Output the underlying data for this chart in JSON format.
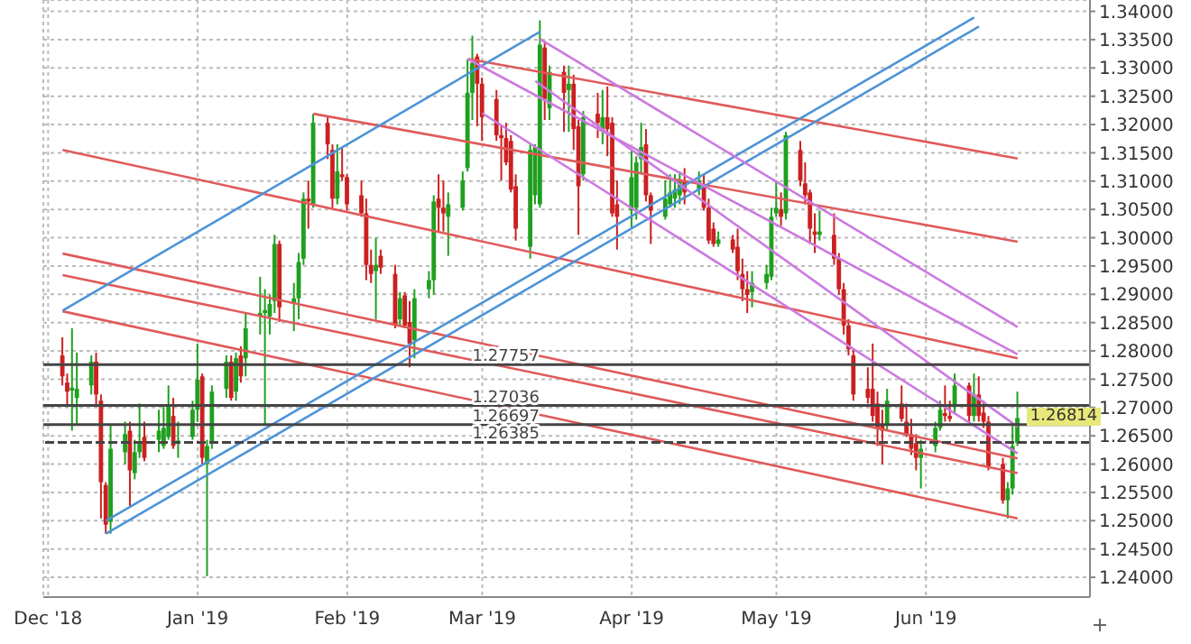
{
  "chart_data": {
    "type": "candlestick",
    "x": [
      "2018-12-04",
      "2018-12-05",
      "2018-12-06",
      "2018-12-07",
      "2018-12-10",
      "2018-12-11",
      "2018-12-12",
      "2018-12-13",
      "2018-12-14",
      "2018-12-17",
      "2018-12-18",
      "2018-12-19",
      "2018-12-20",
      "2018-12-21",
      "2018-12-24",
      "2018-12-25",
      "2018-12-26",
      "2018-12-27",
      "2018-12-28",
      "2018-12-31",
      "2019-01-01",
      "2019-01-02",
      "2019-01-03",
      "2019-01-04",
      "2019-01-07",
      "2019-01-08",
      "2019-01-09",
      "2019-01-10",
      "2019-01-11",
      "2019-01-14",
      "2019-01-15",
      "2019-01-16",
      "2019-01-17",
      "2019-01-18",
      "2019-01-21",
      "2019-01-22",
      "2019-01-23",
      "2019-01-24",
      "2019-01-25",
      "2019-01-28",
      "2019-01-29",
      "2019-01-30",
      "2019-01-31",
      "2019-02-01",
      "2019-02-04",
      "2019-02-05",
      "2019-02-06",
      "2019-02-07",
      "2019-02-08",
      "2019-02-11",
      "2019-02-12",
      "2019-02-13",
      "2019-02-14",
      "2019-02-15",
      "2019-02-18",
      "2019-02-19",
      "2019-02-20",
      "2019-02-21",
      "2019-02-22",
      "2019-02-25",
      "2019-02-26",
      "2019-02-27",
      "2019-02-28",
      "2019-03-01",
      "2019-03-04",
      "2019-03-05",
      "2019-03-06",
      "2019-03-07",
      "2019-03-08",
      "2019-03-11",
      "2019-03-12",
      "2019-03-13",
      "2019-03-14",
      "2019-03-15",
      "2019-03-18",
      "2019-03-19",
      "2019-03-20",
      "2019-03-21",
      "2019-03-22",
      "2019-03-25",
      "2019-03-26",
      "2019-03-27",
      "2019-03-28",
      "2019-03-29",
      "2019-04-01",
      "2019-04-02",
      "2019-04-03",
      "2019-04-04",
      "2019-04-05",
      "2019-04-08",
      "2019-04-09",
      "2019-04-10",
      "2019-04-11",
      "2019-04-12",
      "2019-04-15",
      "2019-04-16",
      "2019-04-17",
      "2019-04-18",
      "2019-04-19",
      "2019-04-22",
      "2019-04-23",
      "2019-04-24",
      "2019-04-25",
      "2019-04-26",
      "2019-04-29",
      "2019-04-30",
      "2019-05-01",
      "2019-05-02",
      "2019-05-03",
      "2019-05-06",
      "2019-05-07",
      "2019-05-08",
      "2019-05-09",
      "2019-05-10",
      "2019-05-13",
      "2019-05-14",
      "2019-05-15",
      "2019-05-16",
      "2019-05-17",
      "2019-05-20",
      "2019-05-21",
      "2019-05-22",
      "2019-05-23",
      "2019-05-24",
      "2019-05-27",
      "2019-05-28",
      "2019-05-29",
      "2019-05-30",
      "2019-05-31",
      "2019-06-03",
      "2019-06-04",
      "2019-06-05",
      "2019-06-06",
      "2019-06-07",
      "2019-06-10",
      "2019-06-11",
      "2019-06-12",
      "2019-06-13",
      "2019-06-14",
      "2019-06-17",
      "2019-06-18",
      "2019-06-19",
      "2019-06-20"
    ],
    "ohlc": [
      [
        1.2792,
        1.2824,
        1.2739,
        1.2755
      ],
      [
        1.2744,
        1.276,
        1.2701,
        1.2728
      ],
      [
        1.273,
        1.284,
        1.2659,
        1.2735
      ],
      [
        1.2717,
        1.2797,
        1.2669,
        1.2733
      ],
      [
        1.2739,
        1.2792,
        1.2723,
        1.2781
      ],
      [
        1.2781,
        1.2797,
        1.2701,
        1.2723
      ],
      [
        1.2712,
        1.2723,
        1.2504,
        1.2568
      ],
      [
        1.2563,
        1.2568,
        1.2477,
        1.2493
      ],
      [
        1.2498,
        1.2669,
        1.2477,
        1.2627
      ],
      [
        1.2621,
        1.2675,
        1.26,
        1.2653
      ],
      [
        1.2659,
        1.2675,
        1.2525,
        1.2589
      ],
      [
        1.2584,
        1.2643,
        1.2573,
        1.2621
      ],
      [
        1.2621,
        1.2707,
        1.2611,
        1.2637
      ],
      [
        1.2648,
        1.2675,
        1.2605,
        1.2611
      ],
      [
        1.2643,
        1.2696,
        1.2621,
        1.2659
      ],
      [
        1.2632,
        1.2701,
        1.2627,
        1.2664
      ],
      [
        1.2648,
        1.2739,
        1.2643,
        1.2701
      ],
      [
        1.2685,
        1.2717,
        1.2627,
        1.2632
      ],
      [
        1.2637,
        1.2675,
        1.2611,
        1.264
      ],
      [
        1.2648,
        1.2712,
        1.2643,
        1.2696
      ],
      [
        1.2696,
        1.2813,
        1.2675,
        1.2749
      ],
      [
        1.2755,
        1.276,
        1.26,
        1.2611
      ],
      [
        1.26,
        1.2643,
        1.2402,
        1.2632
      ],
      [
        1.2637,
        1.2739,
        1.2627,
        1.2728
      ],
      [
        1.2733,
        1.2792,
        1.2717,
        1.2781
      ],
      [
        1.2781,
        1.2792,
        1.2712,
        1.2717
      ],
      [
        1.2728,
        1.2797,
        1.2712,
        1.2787
      ],
      [
        1.2792,
        1.2808,
        1.2744,
        1.2755
      ],
      [
        1.2787,
        1.2867,
        1.2755,
        1.284
      ],
      [
        1.2861,
        1.2931,
        1.2829,
        1.2867
      ],
      [
        1.2867,
        1.2909,
        1.2669,
        1.2872
      ],
      [
        1.2861,
        1.2899,
        1.2829,
        1.2883
      ],
      [
        1.2888,
        1.3005,
        1.2867,
        1.2989
      ],
      [
        1.2989,
        1.2995,
        1.2851,
        1.2877
      ],
      [
        1.2883,
        1.292,
        1.2835,
        1.2893
      ],
      [
        1.2893,
        1.2973,
        1.2856,
        1.2957
      ],
      [
        1.2963,
        1.308,
        1.2952,
        1.3069
      ],
      [
        1.3069,
        1.3101,
        1.3016,
        1.3064
      ],
      [
        1.3059,
        1.3219,
        1.3053,
        1.3203
      ],
      [
        1.3203,
        1.3213,
        1.3139,
        1.3165
      ],
      [
        1.3155,
        1.3165,
        1.3053,
        1.3069
      ],
      [
        1.3069,
        1.3165,
        1.3059,
        1.3117
      ],
      [
        1.3112,
        1.316,
        1.3101,
        1.3107
      ],
      [
        1.3107,
        1.3112,
        1.3048,
        1.3059
      ],
      [
        1.3075,
        1.3101,
        1.3037,
        1.3043
      ],
      [
        1.3043,
        1.3069,
        1.2925,
        1.2952
      ],
      [
        1.2952,
        1.2979,
        1.292,
        1.2936
      ],
      [
        1.2941,
        1.3,
        1.2856,
        1.2952
      ],
      [
        1.2968,
        1.2979,
        1.2936,
        1.2947
      ],
      [
        1.2936,
        1.2952,
        1.284,
        1.2845
      ],
      [
        1.2856,
        1.2904,
        1.2845,
        1.2893
      ],
      [
        1.2898,
        1.2904,
        1.284,
        1.2845
      ],
      [
        1.2851,
        1.2888,
        1.2771,
        1.2813
      ],
      [
        1.2819,
        1.2909,
        1.2787,
        1.2893
      ],
      [
        1.2909,
        1.2941,
        1.2893,
        1.2925
      ],
      [
        1.2925,
        1.3075,
        1.2899,
        1.3064
      ],
      [
        1.3069,
        1.3112,
        1.3011,
        1.3053
      ],
      [
        1.3053,
        1.3101,
        1.3011,
        1.3043
      ],
      [
        1.3037,
        1.308,
        1.2968,
        1.3059
      ],
      [
        1.3053,
        1.3117,
        1.3048,
        1.3101
      ],
      [
        1.3123,
        1.3315,
        1.3117,
        1.3256
      ],
      [
        1.3256,
        1.3357,
        1.3208,
        1.3309
      ],
      [
        1.332,
        1.3325,
        1.3197,
        1.3272
      ],
      [
        1.3272,
        1.3283,
        1.3171,
        1.3213
      ],
      [
        1.3245,
        1.3261,
        1.3171,
        1.3181
      ],
      [
        1.3181,
        1.3197,
        1.3101,
        1.3176
      ],
      [
        1.3176,
        1.3203,
        1.3128,
        1.3133
      ],
      [
        1.3171,
        1.3181,
        1.308,
        1.3085
      ],
      [
        1.3091,
        1.3112,
        1.2995,
        1.3016
      ],
      [
        1.2984,
        1.3165,
        1.2963,
        1.3155
      ],
      [
        1.3075,
        1.3165,
        1.3059,
        1.316
      ],
      [
        1.3059,
        1.3384,
        1.3053,
        1.3341
      ],
      [
        1.3336,
        1.3347,
        1.3208,
        1.3245
      ],
      [
        1.3229,
        1.3304,
        1.3208,
        1.3293
      ],
      [
        1.3293,
        1.3304,
        1.3187,
        1.3256
      ],
      [
        1.3261,
        1.3304,
        1.3187,
        1.3272
      ],
      [
        1.3272,
        1.3288,
        1.3155,
        1.3192
      ],
      [
        1.3197,
        1.3208,
        1.3005,
        1.3091
      ],
      [
        1.3112,
        1.3224,
        1.3101,
        1.3213
      ],
      [
        1.3219,
        1.3256,
        1.3176,
        1.3203
      ],
      [
        1.3192,
        1.3261,
        1.3165,
        1.3213
      ],
      [
        1.3213,
        1.3267,
        1.3144,
        1.3192
      ],
      [
        1.3203,
        1.3213,
        1.3037,
        1.3043
      ],
      [
        1.3059,
        1.3101,
        1.2979,
        1.3037
      ],
      [
        1.3048,
        1.3155,
        1.3016,
        1.3107
      ],
      [
        1.3053,
        1.3144,
        1.3032,
        1.3133
      ],
      [
        1.3139,
        1.3203,
        1.3112,
        1.316
      ],
      [
        1.3165,
        1.3192,
        1.3064,
        1.3075
      ],
      [
        1.3075,
        1.308,
        1.2989,
        1.3048
      ],
      [
        1.3037,
        1.3101,
        1.3032,
        1.3069
      ],
      [
        1.3059,
        1.3112,
        1.3053,
        1.308
      ],
      [
        1.3069,
        1.3112,
        1.3053,
        1.3085
      ],
      [
        1.3075,
        1.3117,
        1.3059,
        1.3101
      ],
      [
        1.3101,
        1.3123,
        1.3059,
        1.308
      ],
      [
        1.3085,
        1.3117,
        1.3075,
        1.3101
      ],
      [
        1.3091,
        1.3112,
        1.3048,
        1.3053
      ],
      [
        1.3053,
        1.3069,
        1.2989,
        1.2995
      ],
      [
        1.3016,
        1.3027,
        1.2984,
        1.2989
      ],
      [
        1.2989,
        1.3011,
        1.2984,
        1.2997
      ],
      [
        1.2997,
        1.3005,
        1.2973,
        1.2979
      ],
      [
        1.2984,
        1.3016,
        1.2925,
        1.2941
      ],
      [
        1.2936,
        1.2963,
        1.2888,
        1.2909
      ],
      [
        1.2909,
        1.2941,
        1.2867,
        1.2899
      ],
      [
        1.2904,
        1.2941,
        1.2877,
        1.292
      ],
      [
        1.292,
        1.2952,
        1.2909,
        1.2936
      ],
      [
        1.2931,
        1.3053,
        1.2925,
        1.3037
      ],
      [
        1.3043,
        1.3101,
        1.3037,
        1.3053
      ],
      [
        1.305,
        1.308,
        1.3021,
        1.3037
      ],
      [
        1.3043,
        1.3187,
        1.3032,
        1.3181
      ],
      [
        1.3155,
        1.3171,
        1.3091,
        1.3101
      ],
      [
        1.3096,
        1.3133,
        1.3059,
        1.3075
      ],
      [
        1.308,
        1.3085,
        1.2989,
        1.3016
      ],
      [
        1.3011,
        1.3043,
        1.2973,
        1.3005
      ],
      [
        1.3005,
        1.3048,
        1.2995,
        1.3011
      ],
      [
        1.3005,
        1.3043,
        1.2952,
        1.2963
      ],
      [
        1.2963,
        1.2973,
        1.2899,
        1.2909
      ],
      [
        1.2909,
        1.292,
        1.2829,
        1.2845
      ],
      [
        1.2845,
        1.2856,
        1.2792,
        1.2803
      ],
      [
        1.2792,
        1.2803,
        1.2712,
        1.2723
      ],
      [
        1.2733,
        1.2771,
        1.2707,
        1.2717
      ],
      [
        1.2733,
        1.2813,
        1.2675,
        1.2685
      ],
      [
        1.2707,
        1.2728,
        1.2632,
        1.2664
      ],
      [
        1.2669,
        1.2696,
        1.26,
        1.2659
      ],
      [
        1.2669,
        1.2733,
        1.2659,
        1.2712
      ],
      [
        1.2707,
        1.2739,
        1.2675,
        1.268
      ],
      [
        1.2675,
        1.2707,
        1.2648,
        1.2653
      ],
      [
        1.2653,
        1.268,
        1.2616,
        1.2627
      ],
      [
        1.2637,
        1.2653,
        1.2589,
        1.2611
      ],
      [
        1.2611,
        1.2643,
        1.2557,
        1.2627
      ],
      [
        1.2632,
        1.2675,
        1.2621,
        1.2664
      ],
      [
        1.2664,
        1.2712,
        1.2659,
        1.2696
      ],
      [
        1.269,
        1.2739,
        1.2675,
        1.2685
      ],
      [
        1.2685,
        1.2712,
        1.2675,
        1.268
      ],
      [
        1.2701,
        1.276,
        1.2691,
        1.2739
      ],
      [
        1.2739,
        1.2744,
        1.2675,
        1.2685
      ],
      [
        1.2685,
        1.276,
        1.2675,
        1.2723
      ],
      [
        1.2723,
        1.2755,
        1.2675,
        1.2685
      ],
      [
        1.2691,
        1.2712,
        1.2664,
        1.2675
      ],
      [
        1.2675,
        1.2685,
        1.2589,
        1.2595
      ],
      [
        1.26,
        1.2611,
        1.253,
        1.2536
      ],
      [
        1.2536,
        1.2568,
        1.2504,
        1.2557
      ],
      [
        1.2557,
        1.2669,
        1.2546,
        1.2632
      ],
      [
        1.2637,
        1.2728,
        1.2632,
        1.26814
      ]
    ],
    "colors": [
      "#cc2020",
      "#cc2020",
      "#1fa01f",
      "#1fa01f",
      "#1fa01f",
      "#cc2020",
      "#cc2020",
      "#cc2020",
      "#1fa01f",
      "#1fa01f",
      "#cc2020",
      "#1fa01f",
      "#1fa01f",
      "#cc2020",
      "#1fa01f",
      "#1fa01f",
      "#1fa01f",
      "#cc2020",
      "#1fa01f",
      "#1fa01f",
      "#1fa01f",
      "#cc2020",
      "#1fa01f",
      "#1fa01f",
      "#1fa01f",
      "#cc2020",
      "#1fa01f",
      "#cc2020",
      "#1fa01f",
      "#1fa01f",
      "#1fa01f",
      "#1fa01f",
      "#1fa01f",
      "#cc2020",
      "#1fa01f",
      "#1fa01f",
      "#1fa01f",
      "#cc2020",
      "#1fa01f",
      "#cc2020",
      "#cc2020",
      "#1fa01f",
      "#cc2020",
      "#cc2020",
      "#cc2020",
      "#cc2020",
      "#cc2020",
      "#1fa01f",
      "#cc2020",
      "#cc2020",
      "#1fa01f",
      "#cc2020",
      "#cc2020",
      "#1fa01f",
      "#1fa01f",
      "#1fa01f",
      "#cc2020",
      "#cc2020",
      "#1fa01f",
      "#1fa01f",
      "#1fa01f",
      "#1fa01f",
      "#cc2020",
      "#cc2020",
      "#cc2020",
      "#cc2020",
      "#cc2020",
      "#cc2020",
      "#cc2020",
      "#1fa01f",
      "#1fa01f",
      "#1fa01f",
      "#cc2020",
      "#1fa01f",
      "#cc2020",
      "#1fa01f",
      "#cc2020",
      "#cc2020",
      "#1fa01f",
      "#cc2020",
      "#1fa01f",
      "#cc2020",
      "#cc2020",
      "#cc2020",
      "#1fa01f",
      "#1fa01f",
      "#1fa01f",
      "#cc2020",
      "#cc2020",
      "#1fa01f",
      "#1fa01f",
      "#1fa01f",
      "#1fa01f",
      "#cc2020",
      "#1fa01f",
      "#cc2020",
      "#cc2020",
      "#cc2020",
      "#1fa01f",
      "#cc2020",
      "#cc2020",
      "#cc2020",
      "#cc2020",
      "#1fa01f",
      "#1fa01f",
      "#1fa01f",
      "#1fa01f",
      "#cc2020",
      "#1fa01f",
      "#cc2020",
      "#cc2020",
      "#cc2020",
      "#cc2020",
      "#1fa01f",
      "#cc2020",
      "#cc2020",
      "#cc2020",
      "#cc2020",
      "#cc2020",
      "#cc2020",
      "#cc2020",
      "#cc2020",
      "#cc2020",
      "#1fa01f",
      "#cc2020",
      "#cc2020",
      "#cc2020",
      "#cc2020",
      "#1fa01f",
      "#1fa01f",
      "#1fa01f",
      "#cc2020",
      "#cc2020",
      "#1fa01f",
      "#cc2020",
      "#1fa01f",
      "#cc2020",
      "#cc2020",
      "#cc2020",
      "#cc2020",
      "#1fa01f",
      "#1fa01f",
      "#1fa01f"
    ],
    "series": [
      {
        "type": "line",
        "color": "#e05a5a",
        "x": [
          "2019-01-25",
          "2019-06-20"
        ],
        "values": [
          1.3219,
          1.2993
        ]
      },
      {
        "type": "line",
        "color": "#e05a5a",
        "x": [
          "2019-02-26",
          "2019-06-20"
        ],
        "values": [
          1.3316,
          1.314
        ]
      },
      {
        "type": "line",
        "color": "#e05a5a",
        "x": [
          "2018-12-04",
          "2019-06-20"
        ],
        "values": [
          1.3155,
          1.2787
        ]
      },
      {
        "type": "line",
        "color": "#e05a5a",
        "x": [
          "2018-12-04",
          "2019-06-20"
        ],
        "values": [
          1.2972,
          1.261
        ]
      },
      {
        "type": "line",
        "color": "#e05a5a",
        "x": [
          "2018-12-04",
          "2019-06-20"
        ],
        "values": [
          1.2934,
          1.2584
        ]
      },
      {
        "type": "line",
        "color": "#e05a5a",
        "x": [
          "2018-12-04",
          "2019-06-20"
        ],
        "values": [
          1.287,
          1.2504
        ]
      },
      {
        "type": "line",
        "color": "#4d94d8",
        "x": [
          "2018-12-04",
          "2019-03-13"
        ],
        "values": [
          1.2871,
          1.3364
        ]
      },
      {
        "type": "line",
        "color": "#4d94d8",
        "x": [
          "2018-12-13",
          "2019-06-11"
        ],
        "values": [
          1.25,
          1.3389
        ]
      },
      {
        "type": "line",
        "color": "#4d94d8",
        "x": [
          "2018-12-13",
          "2019-06-12"
        ],
        "values": [
          1.2477,
          1.3373
        ]
      },
      {
        "type": "line",
        "color": "#cc7ae0",
        "x": [
          "2019-03-13",
          "2019-06-20"
        ],
        "values": [
          1.3351,
          1.2842
        ]
      },
      {
        "type": "line",
        "color": "#cc7ae0",
        "x": [
          "2019-02-26",
          "2019-06-20"
        ],
        "values": [
          1.3316,
          1.2794
        ]
      },
      {
        "type": "line",
        "color": "#cc7ae0",
        "x": [
          "2019-03-12",
          "2019-06-20"
        ],
        "values": [
          1.3277,
          1.2666
        ]
      },
      {
        "type": "line",
        "color": "#cc7ae0",
        "x": [
          "2019-03-01",
          "2019-06-20"
        ],
        "values": [
          1.322,
          1.2619
        ]
      }
    ],
    "ref_lines": [
      {
        "axis": "y",
        "value": 1.27757,
        "label": "1.27757",
        "color": "#444444"
      },
      {
        "axis": "y",
        "value": 1.27036,
        "label": "1.27036",
        "color": "#444444"
      },
      {
        "axis": "y",
        "value": 1.26697,
        "label": "1.26697",
        "color": "#444444"
      },
      {
        "axis": "y",
        "value": 1.26385,
        "label": "1.26385",
        "color": "#444444",
        "line_style": "dashed"
      }
    ],
    "annotations": [
      "1.26814"
    ],
    "xlim": [
      "2018-11-30",
      "2019-07-05"
    ],
    "ylim": [
      1.2365,
      1.342
    ],
    "yticks": [
      {
        "value": 1.24,
        "label": "1.24000"
      },
      {
        "value": 1.245,
        "label": "1.24500"
      },
      {
        "value": 1.25,
        "label": "1.25000"
      },
      {
        "value": 1.255,
        "label": "1.25500"
      },
      {
        "value": 1.26,
        "label": "1.26000"
      },
      {
        "value": 1.265,
        "label": "1.26500"
      },
      {
        "value": 1.27,
        "label": "1.27000"
      },
      {
        "value": 1.275,
        "label": "1.27500"
      },
      {
        "value": 1.28,
        "label": "1.28000"
      },
      {
        "value": 1.285,
        "label": "1.28500"
      },
      {
        "value": 1.29,
        "label": "1.29000"
      },
      {
        "value": 1.295,
        "label": "1.29500"
      },
      {
        "value": 1.3,
        "label": "1.30000"
      },
      {
        "value": 1.305,
        "label": "1.30500"
      },
      {
        "value": 1.31,
        "label": "1.31000"
      },
      {
        "value": 1.315,
        "label": "1.31500"
      },
      {
        "value": 1.32,
        "label": "1.32000"
      },
      {
        "value": 1.325,
        "label": "1.32500"
      },
      {
        "value": 1.33,
        "label": "1.33000"
      },
      {
        "value": 1.335,
        "label": "1.33500"
      },
      {
        "value": 1.34,
        "label": "1.34000"
      }
    ],
    "xticks": [
      {
        "value": "2018-12-01",
        "label": "Dec '18"
      },
      {
        "value": "2019-01-01",
        "label": "Jan '19"
      },
      {
        "value": "2019-02-01",
        "label": "Feb '19"
      },
      {
        "value": "2019-03-01",
        "label": "Mar '19"
      },
      {
        "value": "2019-04-01",
        "label": "Apr '19"
      },
      {
        "value": "2019-05-01",
        "label": "May '19"
      },
      {
        "value": "2019-06-01",
        "label": "Jun '19"
      }
    ],
    "grid": true
  }
}
